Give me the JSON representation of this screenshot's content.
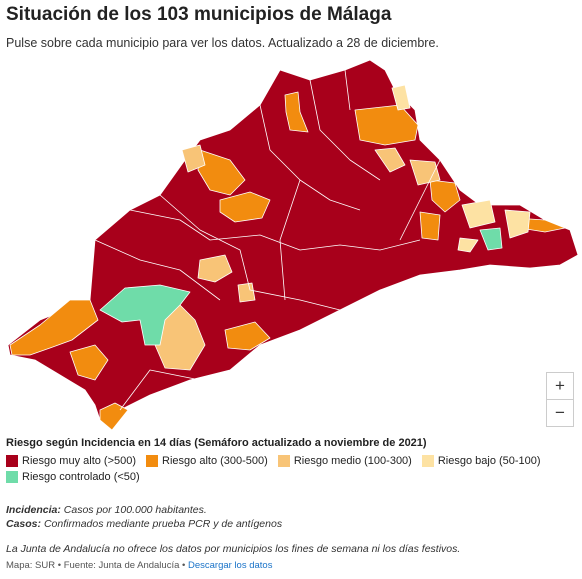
{
  "header": {
    "title": "Situación de los 103 municipios de Málaga",
    "subtitle": "Pulse sobre cada municipio para ver los datos. Actualizado a 28 de diciembre."
  },
  "zoom": {
    "in": "+",
    "out": "−"
  },
  "legend": {
    "title": "Riesgo según Incidencia en 14 días (Semáforo actualizado a noviembre de 2021)",
    "items": [
      {
        "label": "Riesgo muy alto (>500)",
        "color": "#a8001b"
      },
      {
        "label": "Riesgo alto (300-500)",
        "color": "#f28c0f"
      },
      {
        "label": "Riesgo medio (100-300)",
        "color": "#f8c477"
      },
      {
        "label": "Riesgo bajo (50-100)",
        "color": "#fde2a3"
      },
      {
        "label": "Riesgo controlado (<50)",
        "color": "#6fdca9"
      }
    ]
  },
  "notes": [
    {
      "term": "Incidencia:",
      "text": "Casos por 100.000 habitantes."
    },
    {
      "term": "Casos:",
      "text": "Confirmados mediante prueba PCR y de antígenos"
    }
  ],
  "disclaimer": "La Junta de Andalucía no ofrece los datos por municipios los fines de semana ni los días festivos.",
  "footer": {
    "credits": "Mapa: SUR • Fuente: Junta de Andalucía •",
    "link": "Descargar los datos"
  }
}
